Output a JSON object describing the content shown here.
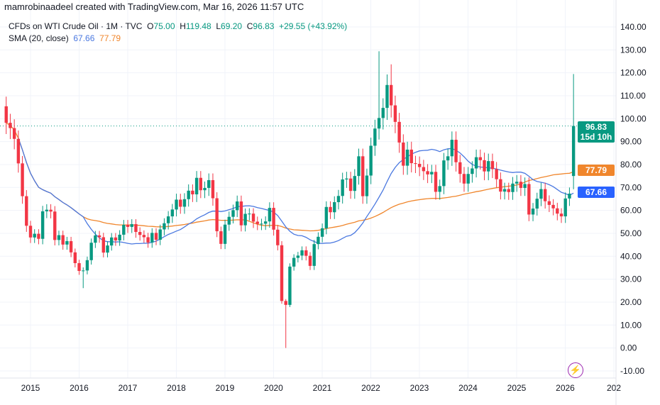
{
  "credit": "mamrobinaadeel created with TradingView.com, Mar 16, 2026 11:57 UTC",
  "legend": {
    "symbol": "CFDs on WTI Crude Oil · 1M · TVC",
    "o_label": "O",
    "o": "75.00",
    "h_label": "H",
    "h": "119.48",
    "l_label": "L",
    "l": "69.20",
    "c_label": "C",
    "c": "96.83",
    "change": "+29.55 (+43.92%)",
    "sma_label": "SMA (20, close)",
    "sma1": "67.66",
    "sma2": "77.79"
  },
  "price_label": {
    "value": "96.83",
    "countdown": "15d 10h"
  },
  "sma_labels": {
    "orange": "77.79",
    "blue": "67.66"
  },
  "colors": {
    "up": "#089981",
    "down": "#f23645",
    "sma_blue": "#4a78e0",
    "sma_orange": "#f0862c"
  },
  "icons": {
    "bolt": "lightning-icon"
  },
  "chart_data": {
    "type": "candlestick",
    "interval": "1M",
    "start": "2014-07",
    "first_open": 105.4,
    "closes": [
      98.2,
      95.9,
      91.2,
      80.5,
      66.2,
      53.3,
      48.2,
      49.8,
      47.6,
      59.6,
      60.3,
      59.5,
      47.1,
      49.2,
      45.1,
      46.6,
      41.7,
      37.0,
      33.6,
      33.8,
      38.3,
      45.9,
      49.1,
      48.3,
      41.6,
      44.7,
      48.2,
      46.9,
      49.4,
      53.7,
      52.8,
      54.0,
      50.6,
      49.3,
      48.3,
      46.0,
      50.2,
      47.2,
      51.7,
      54.4,
      57.4,
      60.4,
      64.7,
      61.6,
      64.9,
      68.6,
      67.0,
      74.2,
      68.8,
      69.8,
      73.2,
      65.3,
      50.9,
      45.4,
      53.8,
      57.2,
      60.1,
      63.9,
      53.5,
      58.5,
      58.6,
      55.1,
      54.1,
      54.2,
      55.2,
      61.1,
      51.6,
      44.8,
      20.5,
      18.8,
      35.5,
      39.3,
      40.3,
      42.6,
      40.2,
      35.8,
      45.3,
      48.5,
      52.2,
      61.5,
      59.2,
      63.6,
      66.3,
      73.5,
      73.9,
      68.5,
      75.0,
      83.6,
      66.2,
      75.2,
      88.2,
      95.7,
      100.3,
      104.7,
      114.7,
      105.8,
      98.6,
      89.6,
      79.5,
      86.5,
      80.6,
      80.3,
      78.9,
      77.1,
      75.7,
      76.8,
      68.1,
      70.6,
      81.8,
      83.6,
      90.8,
      81.0,
      75.9,
      71.7,
      75.9,
      78.3,
      83.2,
      81.9,
      77.0,
      81.5,
      78.0,
      73.6,
      68.2,
      69.3,
      68.0,
      71.7,
      72.5,
      69.8,
      71.5,
      58.2,
      60.8,
      65.1,
      69.3,
      64.0,
      62.4,
      60.9,
      58.6,
      57.4,
      65.2,
      67.3,
      96.83
    ],
    "wick_overrides": {
      "2016-02": {
        "l": 26.1
      },
      "2020-03": {
        "l": 19.3
      },
      "2020-04": {
        "l": 0
      },
      "2022-03": {
        "h": 129.4
      },
      "2022-06": {
        "h": 123.7
      },
      "2026-03": {
        "o": 75.0,
        "h": 119.48,
        "l": 69.2
      }
    },
    "current_price": 96.83,
    "y_ticks": [
      140,
      130,
      120,
      110,
      100,
      90,
      80,
      70,
      60,
      50,
      40,
      30,
      20,
      10,
      0,
      -10
    ],
    "x_ticks": [
      "2015",
      "2016",
      "2017",
      "2018",
      "2019",
      "2020",
      "2021",
      "2022",
      "2023",
      "2024",
      "2025",
      "2026",
      "202"
    ],
    "ylim": [
      -13,
      143
    ],
    "grid": true,
    "sma": [
      {
        "period": 20,
        "color": "blue",
        "last": 67.66
      },
      {
        "color": "orange",
        "last": 77.79
      }
    ]
  }
}
